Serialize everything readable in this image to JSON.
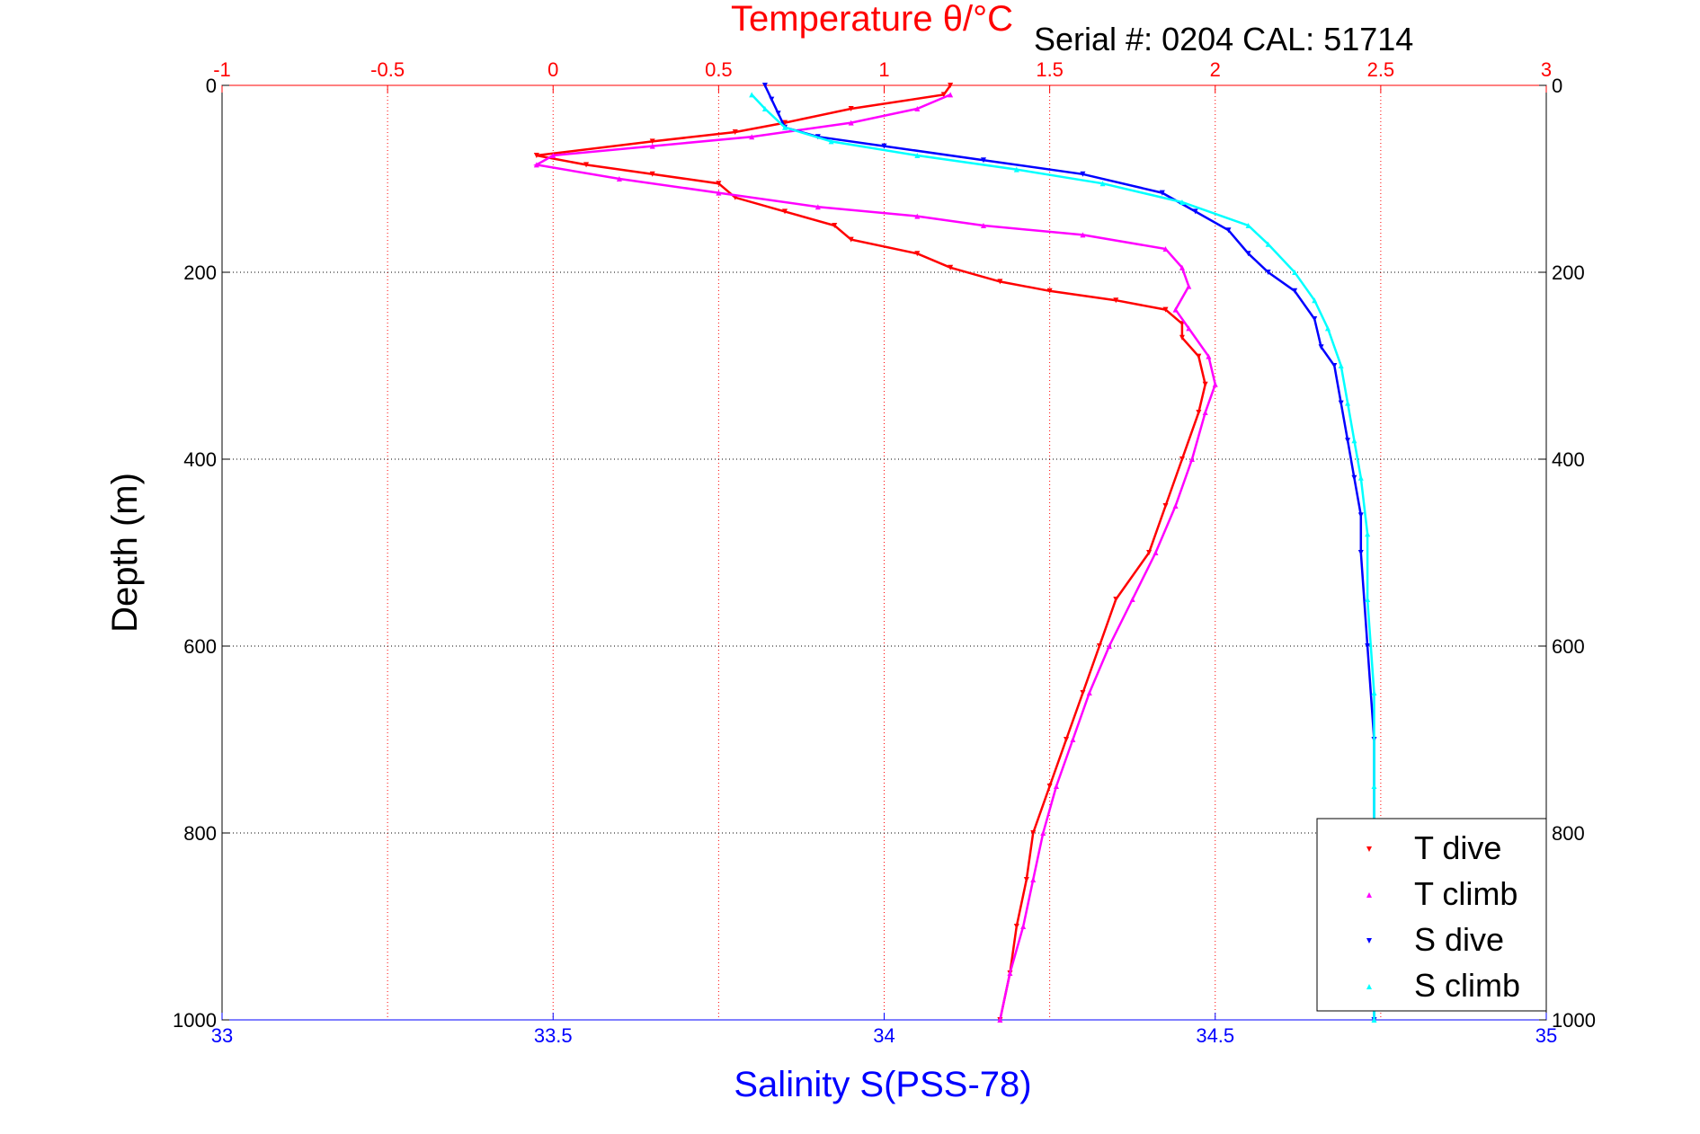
{
  "chart_data": {
    "type": "scatter",
    "title_top": "Temperature θ/°C",
    "annotation": "Serial #: 0204   CAL: 51714",
    "xlabel": "Salinity S(PSS-78)",
    "ylabel": "Depth (m)",
    "x_bottom": {
      "lim": [
        33,
        35
      ],
      "ticks": [
        "33",
        "33.5",
        "34",
        "34.5",
        "35"
      ],
      "color": "#0000ff"
    },
    "x_top": {
      "lim": [
        -1,
        3
      ],
      "ticks": [
        "-1",
        "-0.5",
        "0",
        "0.5",
        "1",
        "1.5",
        "2",
        "2.5",
        "3"
      ],
      "color": "#ff0000"
    },
    "y": {
      "lim": [
        0,
        1000
      ],
      "reversed": true,
      "ticks": [
        "0",
        "200",
        "400",
        "600",
        "800",
        "1000"
      ]
    },
    "grid": true,
    "legend_position": "bottom-right",
    "series": [
      {
        "name": "T dive",
        "axis": "temperature",
        "color": "#ff0000",
        "marker": "triangle-down",
        "points": [
          [
            1.2,
            0
          ],
          [
            1.18,
            10
          ],
          [
            0.9,
            25
          ],
          [
            0.7,
            40
          ],
          [
            0.55,
            50
          ],
          [
            0.3,
            60
          ],
          [
            -0.05,
            75
          ],
          [
            0.1,
            85
          ],
          [
            0.3,
            95
          ],
          [
            0.5,
            105
          ],
          [
            0.55,
            120
          ],
          [
            0.7,
            135
          ],
          [
            0.85,
            150
          ],
          [
            0.9,
            165
          ],
          [
            1.1,
            180
          ],
          [
            1.2,
            195
          ],
          [
            1.35,
            210
          ],
          [
            1.5,
            220
          ],
          [
            1.7,
            230
          ],
          [
            1.85,
            240
          ],
          [
            1.9,
            255
          ],
          [
            1.9,
            270
          ],
          [
            1.95,
            290
          ],
          [
            1.97,
            320
          ],
          [
            1.95,
            350
          ],
          [
            1.9,
            400
          ],
          [
            1.85,
            450
          ],
          [
            1.8,
            500
          ],
          [
            1.7,
            550
          ],
          [
            1.65,
            600
          ],
          [
            1.6,
            650
          ],
          [
            1.55,
            700
          ],
          [
            1.5,
            750
          ],
          [
            1.45,
            800
          ],
          [
            1.43,
            850
          ],
          [
            1.4,
            900
          ],
          [
            1.38,
            950
          ],
          [
            1.35,
            1000
          ]
        ]
      },
      {
        "name": "T climb",
        "axis": "temperature",
        "color": "#ff00ff",
        "marker": "triangle-up",
        "points": [
          [
            1.2,
            10
          ],
          [
            1.1,
            25
          ],
          [
            0.9,
            40
          ],
          [
            0.6,
            55
          ],
          [
            0.3,
            65
          ],
          [
            0.0,
            75
          ],
          [
            -0.05,
            85
          ],
          [
            0.2,
            100
          ],
          [
            0.5,
            115
          ],
          [
            0.8,
            130
          ],
          [
            1.1,
            140
          ],
          [
            1.3,
            150
          ],
          [
            1.6,
            160
          ],
          [
            1.85,
            175
          ],
          [
            1.9,
            195
          ],
          [
            1.92,
            215
          ],
          [
            1.88,
            240
          ],
          [
            1.92,
            260
          ],
          [
            1.98,
            290
          ],
          [
            2.0,
            320
          ],
          [
            1.97,
            350
          ],
          [
            1.93,
            400
          ],
          [
            1.88,
            450
          ],
          [
            1.82,
            500
          ],
          [
            1.75,
            550
          ],
          [
            1.68,
            600
          ],
          [
            1.62,
            650
          ],
          [
            1.57,
            700
          ],
          [
            1.52,
            750
          ],
          [
            1.48,
            800
          ],
          [
            1.45,
            850
          ],
          [
            1.42,
            900
          ],
          [
            1.38,
            950
          ],
          [
            1.35,
            1000
          ]
        ]
      },
      {
        "name": "S dive",
        "axis": "salinity",
        "color": "#0000ff",
        "marker": "triangle-down",
        "points": [
          [
            33.82,
            0
          ],
          [
            33.83,
            15
          ],
          [
            33.84,
            30
          ],
          [
            33.85,
            45
          ],
          [
            33.9,
            55
          ],
          [
            34.0,
            65
          ],
          [
            34.15,
            80
          ],
          [
            34.3,
            95
          ],
          [
            34.42,
            115
          ],
          [
            34.47,
            135
          ],
          [
            34.52,
            155
          ],
          [
            34.55,
            180
          ],
          [
            34.58,
            200
          ],
          [
            34.62,
            220
          ],
          [
            34.65,
            250
          ],
          [
            34.66,
            280
          ],
          [
            34.68,
            300
          ],
          [
            34.69,
            340
          ],
          [
            34.7,
            380
          ],
          [
            34.71,
            420
          ],
          [
            34.72,
            460
          ],
          [
            34.72,
            500
          ],
          [
            34.73,
            600
          ],
          [
            34.74,
            700
          ],
          [
            34.74,
            800
          ],
          [
            34.74,
            900
          ],
          [
            34.74,
            1000
          ]
        ]
      },
      {
        "name": "S climb",
        "axis": "salinity",
        "color": "#00ffff",
        "marker": "triangle-up",
        "points": [
          [
            33.8,
            10
          ],
          [
            33.82,
            25
          ],
          [
            33.85,
            45
          ],
          [
            33.92,
            60
          ],
          [
            34.05,
            75
          ],
          [
            34.2,
            90
          ],
          [
            34.33,
            105
          ],
          [
            34.45,
            125
          ],
          [
            34.55,
            150
          ],
          [
            34.58,
            170
          ],
          [
            34.62,
            200
          ],
          [
            34.65,
            230
          ],
          [
            34.67,
            260
          ],
          [
            34.69,
            300
          ],
          [
            34.7,
            340
          ],
          [
            34.71,
            380
          ],
          [
            34.72,
            420
          ],
          [
            34.73,
            480
          ],
          [
            34.73,
            550
          ],
          [
            34.74,
            650
          ],
          [
            34.74,
            750
          ],
          [
            34.74,
            850
          ],
          [
            34.74,
            950
          ],
          [
            34.74,
            1000
          ]
        ]
      }
    ]
  }
}
